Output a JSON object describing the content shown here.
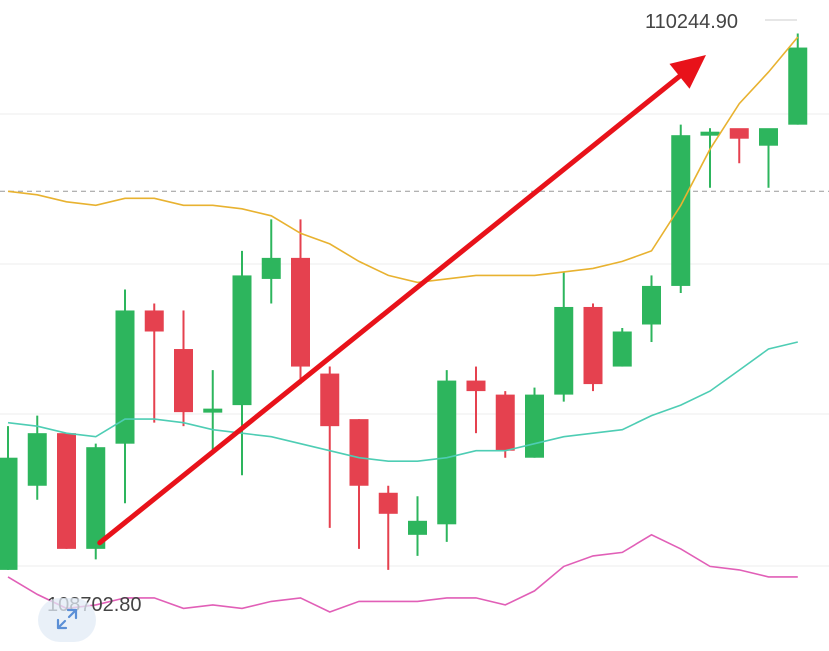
{
  "chart_data": {
    "type": "candlestick",
    "high_label": "110244.90",
    "low_label": "108702.80",
    "y_range": [
      108520,
      110300
    ],
    "reference_level": 109800,
    "colors": {
      "up": "#2db55d",
      "down": "#e5414f",
      "ma_fast": "#e8b230",
      "ma_mid": "#4ecdb4",
      "ma_slow": "#e15fb7",
      "arrow": "#e8121a",
      "grid": "#eeeeee",
      "ref_line": "#999999"
    },
    "candles": [
      {
        "o": 108720,
        "h": 109130,
        "l": 108720,
        "c": 109040
      },
      {
        "o": 108960,
        "h": 109160,
        "l": 108920,
        "c": 109110
      },
      {
        "o": 109110,
        "h": 109110,
        "l": 108780,
        "c": 108780
      },
      {
        "o": 108780,
        "h": 109080,
        "l": 108750,
        "c": 109070
      },
      {
        "o": 109080,
        "h": 109520,
        "l": 108910,
        "c": 109460
      },
      {
        "o": 109460,
        "h": 109480,
        "l": 109140,
        "c": 109400
      },
      {
        "o": 109350,
        "h": 109460,
        "l": 109130,
        "c": 109170
      },
      {
        "o": 109170,
        "h": 109290,
        "l": 109050,
        "c": 109180
      },
      {
        "o": 109190,
        "h": 109630,
        "l": 108990,
        "c": 109560
      },
      {
        "o": 109550,
        "h": 109720,
        "l": 109480,
        "c": 109610
      },
      {
        "o": 109610,
        "h": 109720,
        "l": 109250,
        "c": 109300
      },
      {
        "o": 109280,
        "h": 109300,
        "l": 108840,
        "c": 109130
      },
      {
        "o": 109150,
        "h": 109150,
        "l": 108780,
        "c": 108960
      },
      {
        "o": 108940,
        "h": 108960,
        "l": 108720,
        "c": 108880
      },
      {
        "o": 108820,
        "h": 108930,
        "l": 108760,
        "c": 108860
      },
      {
        "o": 108850,
        "h": 109290,
        "l": 108800,
        "c": 109260
      },
      {
        "o": 109260,
        "h": 109300,
        "l": 109110,
        "c": 109230
      },
      {
        "o": 109220,
        "h": 109230,
        "l": 109040,
        "c": 109060
      },
      {
        "o": 109040,
        "h": 109240,
        "l": 109040,
        "c": 109220
      },
      {
        "o": 109220,
        "h": 109570,
        "l": 109200,
        "c": 109470
      },
      {
        "o": 109470,
        "h": 109480,
        "l": 109230,
        "c": 109250
      },
      {
        "o": 109300,
        "h": 109410,
        "l": 109300,
        "c": 109400
      },
      {
        "o": 109420,
        "h": 109560,
        "l": 109370,
        "c": 109530
      },
      {
        "o": 109530,
        "h": 109990,
        "l": 109510,
        "c": 109960
      },
      {
        "o": 109960,
        "h": 109980,
        "l": 109810,
        "c": 109970
      },
      {
        "o": 109980,
        "h": 109970,
        "l": 109880,
        "c": 109950
      },
      {
        "o": 109930,
        "h": 109970,
        "l": 109810,
        "c": 109980
      },
      {
        "o": 109990,
        "h": 110250,
        "l": 109990,
        "c": 110210
      }
    ],
    "ma_fast": [
      109800,
      109790,
      109770,
      109760,
      109780,
      109780,
      109760,
      109760,
      109750,
      109730,
      109680,
      109650,
      109600,
      109560,
      109540,
      109550,
      109560,
      109560,
      109560,
      109570,
      109580,
      109600,
      109630,
      109760,
      109920,
      110050,
      110140,
      110240
    ],
    "ma_mid": [
      109140,
      109130,
      109110,
      109100,
      109150,
      109150,
      109140,
      109120,
      109110,
      109100,
      109080,
      109060,
      109040,
      109030,
      109030,
      109040,
      109060,
      109060,
      109080,
      109100,
      109110,
      109120,
      109160,
      109190,
      109230,
      109290,
      109350,
      109370
    ],
    "ma_slow": [
      108700,
      108650,
      108610,
      108620,
      108640,
      108640,
      108610,
      108620,
      108610,
      108630,
      108640,
      108600,
      108630,
      108630,
      108630,
      108640,
      108640,
      108620,
      108660,
      108730,
      108760,
      108770,
      108820,
      108780,
      108730,
      108720,
      108700,
      108700
    ]
  }
}
